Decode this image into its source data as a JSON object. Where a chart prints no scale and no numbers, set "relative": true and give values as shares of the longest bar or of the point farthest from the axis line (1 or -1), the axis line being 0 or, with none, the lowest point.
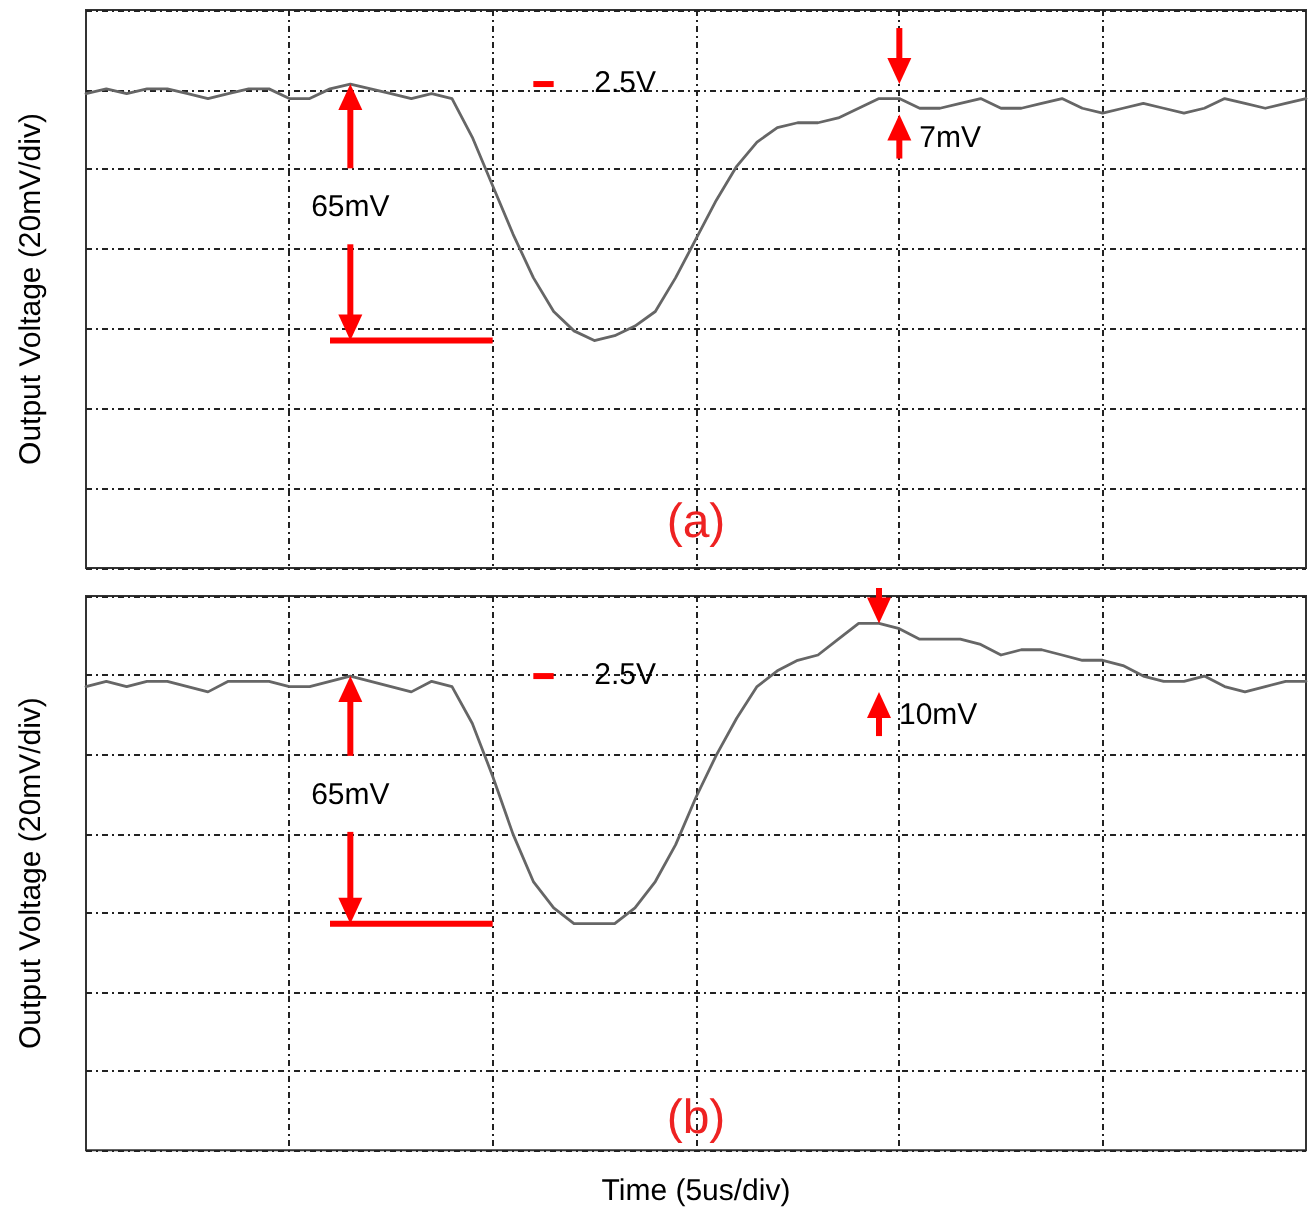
{
  "chart_data": [
    {
      "type": "line",
      "ylabel": "Output Voltage (20mV/div)",
      "relative": true,
      "grid": true,
      "annotations": [
        "2.5V",
        "65mV",
        "7mV",
        "(a)"
      ],
      "categories": [
        null,
        null,
        null,
        null,
        null,
        null,
        null,
        null,
        null,
        null,
        null,
        null,
        null,
        null,
        null,
        null,
        null,
        null,
        null,
        null,
        null,
        null,
        null,
        null,
        null,
        null,
        null,
        null,
        null,
        null,
        null,
        null,
        null,
        null,
        null,
        null,
        null,
        null,
        null,
        null,
        null,
        null,
        null,
        null,
        null,
        null,
        null,
        null,
        null,
        null,
        null,
        null,
        null,
        null,
        null,
        null,
        null,
        null,
        null,
        null,
        null
      ],
      "series": [
        {
          "color": "#666666",
          "values": [
            0.98,
            0.99,
            0.98,
            0.99,
            0.99,
            0.98,
            0.97,
            0.98,
            0.99,
            0.99,
            0.97,
            0.97,
            0.99,
            1,
            0.99,
            0.98,
            0.97,
            0.98,
            0.97,
            0.89,
            0.79,
            0.69,
            0.6,
            0.53,
            0.49,
            0.47,
            0.48,
            0.5,
            0.53,
            0.6,
            0.68,
            0.76,
            0.83,
            0.88,
            0.91,
            0.92,
            0.92,
            0.93,
            0.95,
            0.97,
            0.97,
            0.95,
            0.95,
            0.96,
            0.97,
            0.95,
            0.95,
            0.96,
            0.97,
            0.95,
            0.94,
            0.95,
            0.96,
            0.95,
            0.94,
            0.95,
            0.97,
            0.96,
            0.95,
            0.96,
            0.97
          ]
        }
      ]
    },
    {
      "type": "line",
      "ylabel": "Output Voltage (20mV/div)",
      "xlabel": "Time (5us/div)",
      "relative": true,
      "grid": true,
      "annotations": [
        "2.5V",
        "65mV",
        "10mV",
        "(b)"
      ],
      "categories": [
        null,
        null,
        null,
        null,
        null,
        null,
        null,
        null,
        null,
        null,
        null,
        null,
        null,
        null,
        null,
        null,
        null,
        null,
        null,
        null,
        null,
        null,
        null,
        null,
        null,
        null,
        null,
        null,
        null,
        null,
        null,
        null,
        null,
        null,
        null,
        null,
        null,
        null,
        null,
        null,
        null,
        null,
        null,
        null,
        null,
        null,
        null,
        null,
        null,
        null,
        null,
        null,
        null,
        null,
        null,
        null,
        null,
        null,
        null,
        null,
        null
      ],
      "series": [
        {
          "color": "#666666",
          "values": [
            0.88,
            0.89,
            0.88,
            0.89,
            0.89,
            0.88,
            0.87,
            0.89,
            0.89,
            0.89,
            0.88,
            0.88,
            0.89,
            0.9,
            0.89,
            0.88,
            0.87,
            0.89,
            0.88,
            0.81,
            0.71,
            0.6,
            0.51,
            0.46,
            0.43,
            0.43,
            0.43,
            0.46,
            0.51,
            0.58,
            0.67,
            0.75,
            0.82,
            0.88,
            0.91,
            0.93,
            0.94,
            0.97,
            1.0,
            1,
            0.99,
            0.97,
            0.97,
            0.97,
            0.96,
            0.94,
            0.95,
            0.95,
            0.94,
            0.93,
            0.93,
            0.92,
            0.9,
            0.89,
            0.89,
            0.9,
            0.88,
            0.87,
            0.88,
            0.89,
            0.89
          ]
        }
      ]
    }
  ]
}
